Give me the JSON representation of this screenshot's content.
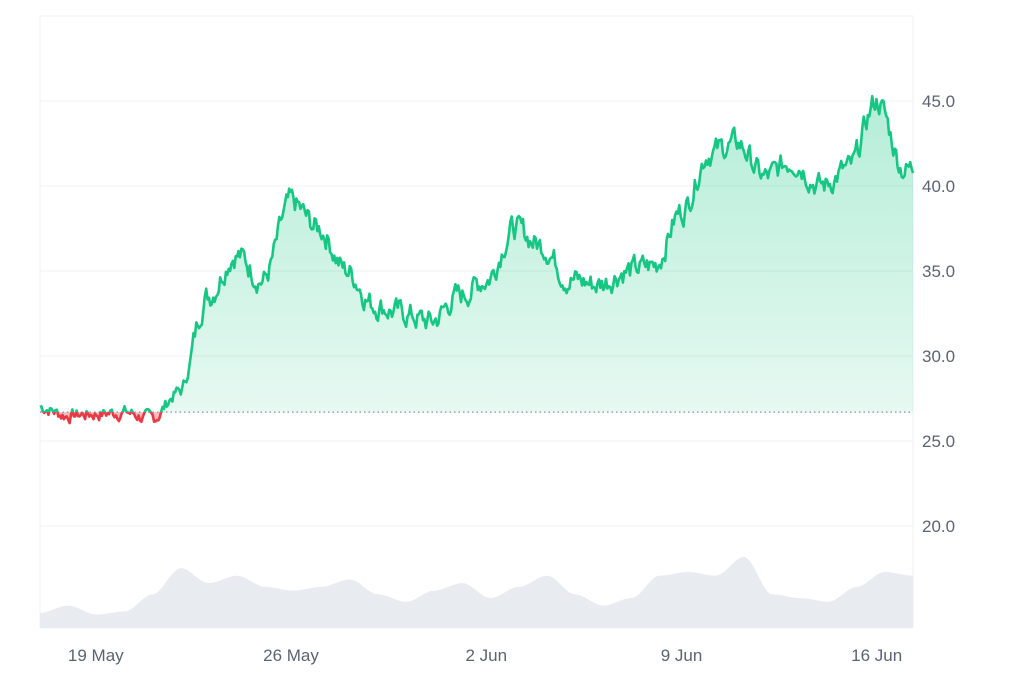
{
  "chart_data": {
    "type": "area",
    "x_ticks": [
      "19 May",
      "26 May",
      "2 Jun",
      "9 Jun",
      "16 Jun"
    ],
    "y_ticks": [
      "20.0",
      "25.0",
      "30.0",
      "35.0",
      "40.0",
      "45.0"
    ],
    "ylim": [
      14.0,
      50.0
    ],
    "baseline": 26.7,
    "grid": true,
    "colors": {
      "up": "#16c784",
      "down": "#ea3943",
      "volume": "#e8ebef",
      "grid": "#eef0f3"
    },
    "price_series": {
      "x_dates": [
        "17 May",
        "18 May",
        "19 May",
        "20 May",
        "21 May",
        "22 May",
        "23 May",
        "24 May",
        "25 May",
        "26 May",
        "27 May",
        "28 May",
        "29 May",
        "30 May",
        "31 May",
        "1 Jun",
        "2 Jun",
        "3 Jun",
        "4 Jun",
        "5 Jun",
        "6 Jun",
        "7 Jun",
        "8 Jun",
        "9 Jun",
        "10 Jun",
        "11 Jun",
        "12 Jun",
        "13 Jun",
        "14 Jun",
        "15 Jun",
        "16 Jun",
        "17 Jun"
      ],
      "values": [
        27.0,
        26.5,
        26.6,
        26.7,
        26.3,
        27.9,
        33.5,
        36.0,
        34.5,
        39.0,
        37.5,
        35.0,
        33.0,
        32.5,
        32.0,
        33.5,
        34.5,
        37.5,
        36.5,
        34.5,
        34.2,
        35.0,
        35.3,
        38.5,
        42.0,
        42.5,
        40.5,
        41.5,
        40.0,
        41.0,
        45.0,
        41.0
      ]
    },
    "volume_series": {
      "values": [
        0.2,
        0.3,
        0.18,
        0.22,
        0.45,
        0.8,
        0.6,
        0.7,
        0.55,
        0.5,
        0.55,
        0.65,
        0.45,
        0.35,
        0.5,
        0.6,
        0.4,
        0.55,
        0.7,
        0.45,
        0.3,
        0.4,
        0.7,
        0.75,
        0.7,
        0.95,
        0.45,
        0.4,
        0.35,
        0.55,
        0.75,
        0.7
      ]
    }
  }
}
